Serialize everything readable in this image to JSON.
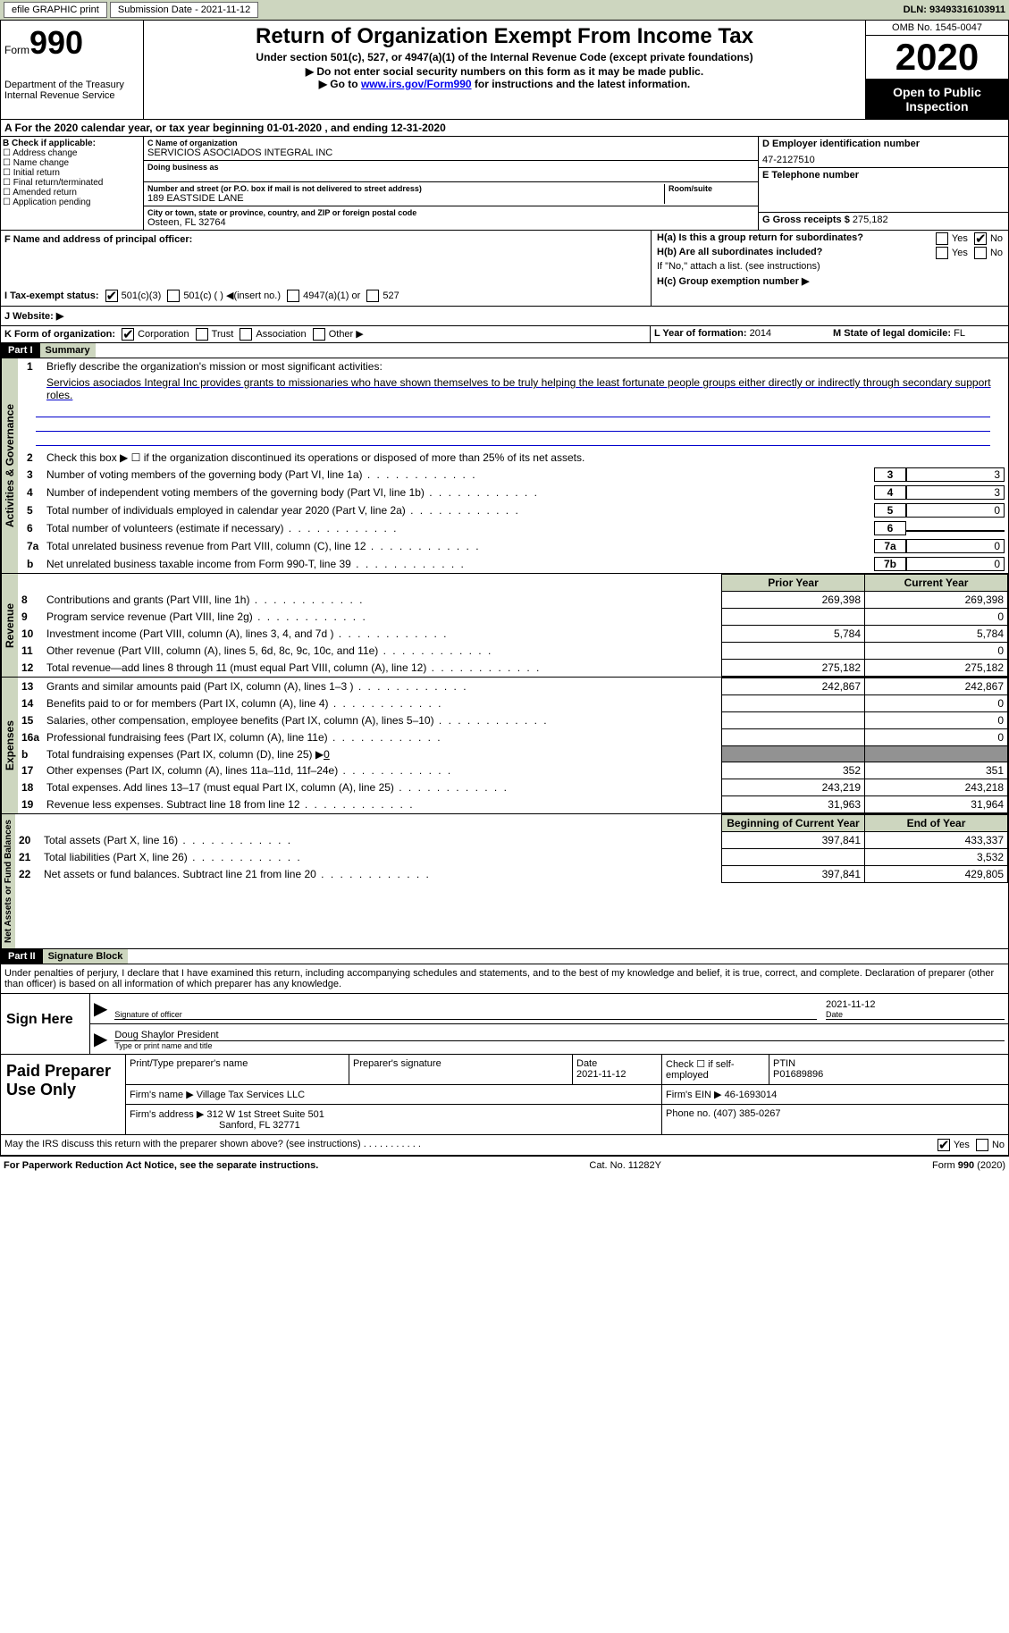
{
  "header": {
    "efile": "efile GRAPHIC print",
    "submission": "Submission Date - 2021-11-12",
    "dln": "DLN: 93493316103911"
  },
  "form": {
    "formword": "Form",
    "f990": "990",
    "dept": "Department of the Treasury\nInternal Revenue Service",
    "title": "Return of Organization Exempt From Income Tax",
    "sub1": "Under section 501(c), 527, or 4947(a)(1) of the Internal Revenue Code (except private foundations)",
    "sub2": "▶ Do not enter social security numbers on this form as it may be made public.",
    "sub3_pre": "▶ Go to ",
    "sub3_link": "www.irs.gov/Form990",
    "sub3_post": " for instructions and the latest information.",
    "omb": "OMB No. 1545-0047",
    "year": "2020",
    "inspect": "Open to Public Inspection"
  },
  "sectionA": "A   For the 2020 calendar year, or tax year beginning 01-01-2020    , and ending 12-31-2020",
  "boxB": {
    "title": "B Check if applicable:",
    "opts": [
      "Address change",
      "Name change",
      "Initial return",
      "Final return/terminated",
      "Amended return",
      "Application pending"
    ]
  },
  "boxC": {
    "lbl": "C Name of organization",
    "name": "SERVICIOS ASOCIADOS INTEGRAL INC",
    "dba_lbl": "Doing business as",
    "addr_lbl": "Number and street (or P.O. box if mail is not delivered to street address)",
    "room_lbl": "Room/suite",
    "addr": "189 EASTSIDE LANE",
    "city_lbl": "City or town, state or province, country, and ZIP or foreign postal code",
    "city": "Osteen, FL  32764"
  },
  "boxD": {
    "lbl": "D Employer identification number",
    "val": "47-2127510"
  },
  "boxE": {
    "lbl": "E Telephone number"
  },
  "boxG": {
    "lbl": "G Gross receipts $",
    "val": "275,182"
  },
  "boxF": {
    "lbl": "F  Name and address of principal officer:"
  },
  "boxH": {
    "ha": "H(a)  Is this a group return for subordinates?",
    "hb": "H(b)  Are all subordinates included?",
    "hb2": "If \"No,\" attach a list. (see instructions)",
    "hc": "H(c)  Group exemption number ▶",
    "yes": "Yes",
    "no": "No"
  },
  "lineI": {
    "lbl": "I    Tax-exempt status:",
    "o1": "501(c)(3)",
    "o2": "501(c) (  ) ◀(insert no.)",
    "o3": "4947(a)(1) or",
    "o4": "527"
  },
  "lineJ": "J   Website: ▶",
  "lineK": {
    "lbl": "K Form of organization:",
    "o1": "Corporation",
    "o2": "Trust",
    "o3": "Association",
    "o4": "Other ▶"
  },
  "lineL": {
    "lbl": "L Year of formation:",
    "val": "2014"
  },
  "lineM": {
    "lbl": "M State of legal domicile:",
    "val": "FL"
  },
  "part1": {
    "hdr": "Part I",
    "title": "Summary"
  },
  "gov": {
    "vtab": "Activities & Governance",
    "l1": "Briefly describe the organization's mission or most significant activities:",
    "mission": "Servicios asociados Integral Inc provides grants to missionaries who have shown themselves to be truly helping the least fortunate people groups either directly or indirectly through secondary support roles.",
    "l2": "Check this box ▶ ☐  if the organization discontinued its operations or disposed of more than 25% of its net assets.",
    "rows": [
      {
        "n": "3",
        "t": "Number of voting members of the governing body (Part VI, line 1a)",
        "b": "3",
        "v": "3"
      },
      {
        "n": "4",
        "t": "Number of independent voting members of the governing body (Part VI, line 1b)",
        "b": "4",
        "v": "3"
      },
      {
        "n": "5",
        "t": "Total number of individuals employed in calendar year 2020 (Part V, line 2a)",
        "b": "5",
        "v": "0"
      },
      {
        "n": "6",
        "t": "Total number of volunteers (estimate if necessary)",
        "b": "6",
        "v": ""
      },
      {
        "n": "7a",
        "t": "Total unrelated business revenue from Part VIII, column (C), line 12",
        "b": "7a",
        "v": "0"
      },
      {
        "n": "b",
        "t": "Net unrelated business taxable income from Form 990-T, line 39",
        "b": "7b",
        "v": "0"
      }
    ]
  },
  "fin": {
    "hdr_prior": "Prior Year",
    "hdr_curr": "Current Year",
    "hdr_boy": "Beginning of Current Year",
    "hdr_eoy": "End of Year"
  },
  "rev": {
    "vtab": "Revenue",
    "rows": [
      {
        "n": "8",
        "t": "Contributions and grants (Part VIII, line 1h)",
        "p": "269,398",
        "c": "269,398"
      },
      {
        "n": "9",
        "t": "Program service revenue (Part VIII, line 2g)",
        "p": "",
        "c": "0"
      },
      {
        "n": "10",
        "t": "Investment income (Part VIII, column (A), lines 3, 4, and 7d )",
        "p": "5,784",
        "c": "5,784"
      },
      {
        "n": "11",
        "t": "Other revenue (Part VIII, column (A), lines 5, 6d, 8c, 9c, 10c, and 11e)",
        "p": "",
        "c": "0"
      },
      {
        "n": "12",
        "t": "Total revenue—add lines 8 through 11 (must equal Part VIII, column (A), line 12)",
        "p": "275,182",
        "c": "275,182"
      }
    ]
  },
  "exp": {
    "vtab": "Expenses",
    "rows": [
      {
        "n": "13",
        "t": "Grants and similar amounts paid (Part IX, column (A), lines 1–3 )",
        "p": "242,867",
        "c": "242,867"
      },
      {
        "n": "14",
        "t": "Benefits paid to or for members (Part IX, column (A), line 4)",
        "p": "",
        "c": "0"
      },
      {
        "n": "15",
        "t": "Salaries, other compensation, employee benefits (Part IX, column (A), lines 5–10)",
        "p": "",
        "c": "0"
      },
      {
        "n": "16a",
        "t": "Professional fundraising fees (Part IX, column (A), line 11e)",
        "p": "",
        "c": "0"
      }
    ],
    "l16b_pre": "Total fundraising expenses (Part IX, column (D), line 25) ▶",
    "l16b_val": "0",
    "rows2": [
      {
        "n": "17",
        "t": "Other expenses (Part IX, column (A), lines 11a–11d, 11f–24e)",
        "p": "352",
        "c": "351"
      },
      {
        "n": "18",
        "t": "Total expenses. Add lines 13–17 (must equal Part IX, column (A), line 25)",
        "p": "243,219",
        "c": "243,218"
      },
      {
        "n": "19",
        "t": "Revenue less expenses. Subtract line 18 from line 12",
        "p": "31,963",
        "c": "31,964"
      }
    ]
  },
  "net": {
    "vtab": "Net Assets or Fund Balances",
    "rows": [
      {
        "n": "20",
        "t": "Total assets (Part X, line 16)",
        "p": "397,841",
        "c": "433,337"
      },
      {
        "n": "21",
        "t": "Total liabilities (Part X, line 26)",
        "p": "",
        "c": "3,532"
      },
      {
        "n": "22",
        "t": "Net assets or fund balances. Subtract line 21 from line 20",
        "p": "397,841",
        "c": "429,805"
      }
    ]
  },
  "part2": {
    "hdr": "Part II",
    "title": "Signature Block"
  },
  "sig": {
    "decl": "Under penalties of perjury, I declare that I have examined this return, including accompanying schedules and statements, and to the best of my knowledge and belief, it is true, correct, and complete. Declaration of preparer (other than officer) is based on all information of which preparer has any knowledge.",
    "sign_here": "Sign Here",
    "sig_lbl": "Signature of officer",
    "date_lbl": "Date",
    "date": "2021-11-12",
    "name": "Doug Shaylor  President",
    "name_lbl": "Type or print name and title"
  },
  "paid": {
    "hdr": "Paid Preparer Use Only",
    "c1": "Print/Type preparer's name",
    "c2": "Preparer's signature",
    "c3": "Date",
    "c3v": "2021-11-12",
    "c4": "Check ☐ if self-employed",
    "c5": "PTIN",
    "c5v": "P01689896",
    "firm_lbl": "Firm's name    ▶",
    "firm": "Village Tax Services LLC",
    "ein_lbl": "Firm's EIN ▶",
    "ein": "46-1693014",
    "addr_lbl": "Firm's address ▶",
    "addr": "312 W 1st Street Suite 501",
    "addr2": "Sanford, FL  32771",
    "ph_lbl": "Phone no.",
    "ph": "(407) 385-0267"
  },
  "discuss": {
    "txt": "May the IRS discuss this return with the preparer shown above? (see instructions)",
    "yes": "Yes",
    "no": "No"
  },
  "footer": {
    "l": "For Paperwork Reduction Act Notice, see the separate instructions.",
    "c": "Cat. No. 11282Y",
    "r": "Form 990 (2020)"
  }
}
